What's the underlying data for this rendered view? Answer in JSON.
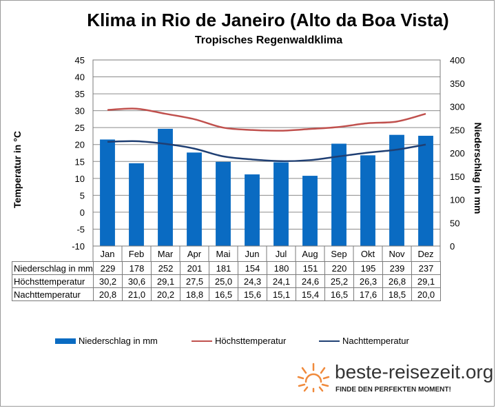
{
  "title": "Klima in Rio de Janeiro (Alto da Boa Vista)",
  "subtitle": "Tropisches  Regenwaldklima",
  "chart_data": {
    "type": "bar+line",
    "categories": [
      "Jan",
      "Feb",
      "Mar",
      "Apr",
      "Mai",
      "Jun",
      "Jul",
      "Aug",
      "Sep",
      "Okt",
      "Nov",
      "Dez"
    ],
    "series": [
      {
        "name": "Niederschlag in mm",
        "type": "bar",
        "axis": "right",
        "color": "#0a6bc2",
        "values": [
          229,
          178,
          252,
          201,
          181,
          154,
          180,
          151,
          220,
          195,
          239,
          237
        ]
      },
      {
        "name": "Höchsttemperatur",
        "type": "line",
        "axis": "left",
        "color": "#c0504d",
        "values": [
          30.2,
          30.6,
          29.1,
          27.5,
          25.0,
          24.3,
          24.1,
          24.6,
          25.2,
          26.3,
          26.8,
          29.1
        ]
      },
      {
        "name": "Nachttemperatur",
        "type": "line",
        "axis": "left",
        "color": "#1f3f73",
        "values": [
          20.8,
          21.0,
          20.2,
          18.8,
          16.5,
          15.6,
          15.1,
          15.4,
          16.5,
          17.6,
          18.5,
          20.0
        ]
      }
    ],
    "ylabel": "Temperatur in °C",
    "y2label": "Niederschlag in mm",
    "ylim": [
      -10,
      45
    ],
    "y2lim": [
      0,
      400
    ],
    "yticks": [
      "45",
      "40",
      "35",
      "30",
      "25",
      "20",
      "15",
      "10",
      "5",
      "0",
      "-5",
      "-10"
    ],
    "y2ticks": [
      "400",
      "350",
      "300",
      "250",
      "200",
      "150",
      "100",
      "50",
      "0"
    ],
    "grid": true
  },
  "table": {
    "rows": [
      {
        "label": "Niederschlag in mm",
        "cells": [
          "229",
          "178",
          "252",
          "201",
          "181",
          "154",
          "180",
          "151",
          "220",
          "195",
          "239",
          "237"
        ]
      },
      {
        "label": "Höchsttemperatur",
        "cells": [
          "30,2",
          "30,6",
          "29,1",
          "27,5",
          "25,0",
          "24,3",
          "24,1",
          "24,6",
          "25,2",
          "26,3",
          "26,8",
          "29,1"
        ]
      },
      {
        "label": "Nachttemperatur",
        "cells": [
          "20,8",
          "21,0",
          "20,2",
          "18,8",
          "16,5",
          "15,6",
          "15,1",
          "15,4",
          "16,5",
          "17,6",
          "18,5",
          "20,0"
        ]
      }
    ]
  },
  "legend": {
    "precip": "Niederschlag in mm",
    "high": "Höchsttemperatur",
    "night": "Nachttemperatur"
  },
  "brand": {
    "name": "beste-reisezeit.org",
    "tagline": "FINDE DEN PERFEKTEN MOMENT!",
    "sun_color": "#f08a3c"
  }
}
